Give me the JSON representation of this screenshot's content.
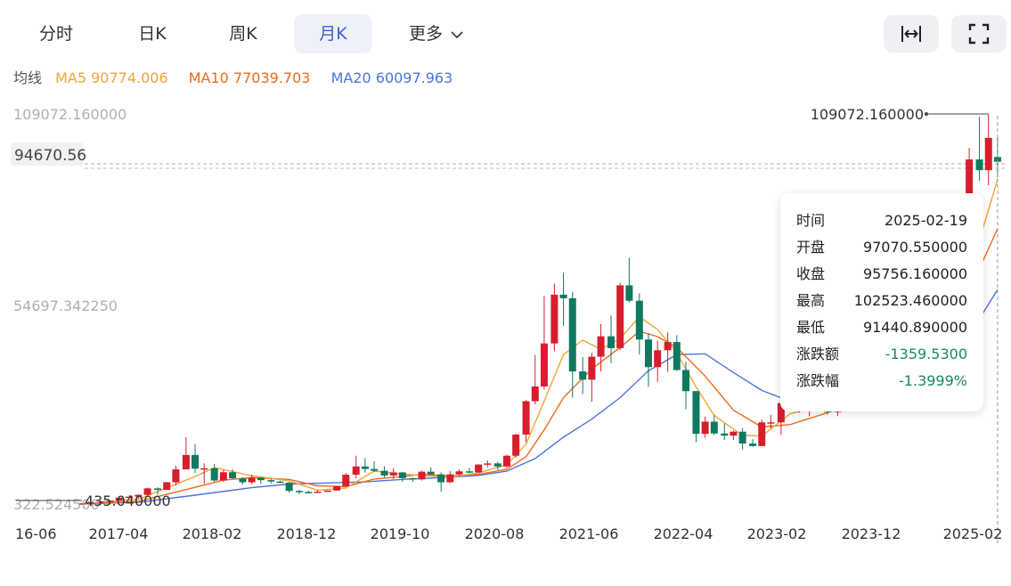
{
  "tabs": [
    {
      "label": "分时",
      "active": false
    },
    {
      "label": "日K",
      "active": false
    },
    {
      "label": "周K",
      "active": false
    },
    {
      "label": "月K",
      "active": true
    },
    {
      "label": "更多",
      "active": false
    }
  ],
  "toolbar": {
    "fit_icon": "fit-width-icon",
    "fullscreen_icon": "fullscreen-icon"
  },
  "ma_legend": {
    "label": "均线",
    "ma5": "MA5 90774.006",
    "ma10": "MA10 77039.703",
    "ma20": "MA20 60097.963"
  },
  "colors": {
    "up": "#d81e2e",
    "down": "#0f7a5f",
    "ma5": "#f3a33a",
    "ma10": "#f06a1c",
    "ma20": "#4d72e0",
    "accent": "#3b63d8",
    "down_text": "#1a8a5c"
  },
  "tooltip": {
    "rows": [
      {
        "key": "时间",
        "value": "2025-02-19",
        "tone": "normal"
      },
      {
        "key": "开盘",
        "value": "97070.550000",
        "tone": "normal"
      },
      {
        "key": "收盘",
        "value": "95756.160000",
        "tone": "normal"
      },
      {
        "key": "最高",
        "value": "102523.460000",
        "tone": "normal"
      },
      {
        "key": "最低",
        "value": "91440.890000",
        "tone": "normal"
      },
      {
        "key": "涨跌额",
        "value": "-1359.5300",
        "tone": "down"
      },
      {
        "key": "涨跌幅",
        "value": "-1.3999%",
        "tone": "down"
      }
    ]
  },
  "chart_data": {
    "type": "candlestick",
    "y_labels": [
      "109072.160000",
      "54697.342250",
      "322.524500"
    ],
    "y_range": [
      322.5245,
      109072.16
    ],
    "price_tag": "94670.56",
    "max_label": "109072.160000",
    "min_label": "435.040000",
    "x_labels": [
      "16-06",
      "2017-04",
      "2018-02",
      "2018-12",
      "2019-10",
      "2020-08",
      "2021-06",
      "2022-04",
      "2023-02",
      "2023-12",
      "2025-02"
    ],
    "candles": [
      {
        "x": 2017.0,
        "o": 450,
        "c": 520,
        "h": 600,
        "l": 435
      },
      {
        "x": 2017.08,
        "o": 520,
        "c": 600,
        "h": 660,
        "l": 480
      },
      {
        "x": 2017.17,
        "o": 600,
        "c": 1000,
        "h": 1100,
        "l": 560
      },
      {
        "x": 2017.25,
        "o": 1000,
        "c": 1300,
        "h": 1400,
        "l": 950
      },
      {
        "x": 2017.33,
        "o": 1300,
        "c": 2100,
        "h": 2300,
        "l": 1250
      },
      {
        "x": 2017.42,
        "o": 2100,
        "c": 2400,
        "h": 2800,
        "l": 2000
      },
      {
        "x": 2017.5,
        "o": 2400,
        "c": 2900,
        "h": 3000,
        "l": 1900
      },
      {
        "x": 2017.58,
        "o": 2900,
        "c": 4700,
        "h": 4900,
        "l": 2800
      },
      {
        "x": 2017.67,
        "o": 4700,
        "c": 4300,
        "h": 5000,
        "l": 3000
      },
      {
        "x": 2017.75,
        "o": 4300,
        "c": 6400,
        "h": 6500,
        "l": 4200
      },
      {
        "x": 2017.83,
        "o": 6400,
        "c": 10000,
        "h": 11000,
        "l": 5500
      },
      {
        "x": 2017.92,
        "o": 10000,
        "c": 14000,
        "h": 19000,
        "l": 10000
      },
      {
        "x": 2018.0,
        "o": 14000,
        "c": 10200,
        "h": 17000,
        "l": 9000
      },
      {
        "x": 2018.08,
        "o": 10200,
        "c": 10300,
        "h": 11700,
        "l": 6000
      },
      {
        "x": 2018.17,
        "o": 10300,
        "c": 6900,
        "h": 11500,
        "l": 6500
      },
      {
        "x": 2018.25,
        "o": 6900,
        "c": 9200,
        "h": 9800,
        "l": 6500
      },
      {
        "x": 2018.33,
        "o": 9200,
        "c": 7500,
        "h": 10000,
        "l": 7400
      },
      {
        "x": 2018.42,
        "o": 7500,
        "c": 6400,
        "h": 7800,
        "l": 5800
      },
      {
        "x": 2018.5,
        "o": 6400,
        "c": 7700,
        "h": 8500,
        "l": 5900
      },
      {
        "x": 2018.58,
        "o": 7700,
        "c": 7000,
        "h": 7800,
        "l": 5900
      },
      {
        "x": 2018.67,
        "o": 7000,
        "c": 6600,
        "h": 7400,
        "l": 6100
      },
      {
        "x": 2018.75,
        "o": 6600,
        "c": 6300,
        "h": 6800,
        "l": 6200
      },
      {
        "x": 2018.83,
        "o": 6300,
        "c": 4000,
        "h": 6500,
        "l": 3500
      },
      {
        "x": 2018.92,
        "o": 4000,
        "c": 3700,
        "h": 4300,
        "l": 3100
      },
      {
        "x": 2019.0,
        "o": 3700,
        "c": 3450,
        "h": 4000,
        "l": 3350
      },
      {
        "x": 2019.08,
        "o": 3450,
        "c": 3800,
        "h": 4200,
        "l": 3400
      },
      {
        "x": 2019.17,
        "o": 3800,
        "c": 4100,
        "h": 4100,
        "l": 3700
      },
      {
        "x": 2019.25,
        "o": 4100,
        "c": 5300,
        "h": 5400,
        "l": 4000
      },
      {
        "x": 2019.33,
        "o": 5300,
        "c": 8500,
        "h": 9000,
        "l": 5200
      },
      {
        "x": 2019.42,
        "o": 8500,
        "c": 10800,
        "h": 13800,
        "l": 7500
      },
      {
        "x": 2019.5,
        "o": 10800,
        "c": 10100,
        "h": 13100,
        "l": 9100
      },
      {
        "x": 2019.58,
        "o": 10100,
        "c": 9600,
        "h": 12300,
        "l": 9300
      },
      {
        "x": 2019.67,
        "o": 9600,
        "c": 8300,
        "h": 10900,
        "l": 7700
      },
      {
        "x": 2019.75,
        "o": 8300,
        "c": 9150,
        "h": 10300,
        "l": 7300
      },
      {
        "x": 2019.83,
        "o": 9150,
        "c": 7550,
        "h": 9300,
        "l": 6500
      },
      {
        "x": 2019.92,
        "o": 7550,
        "c": 7200,
        "h": 7700,
        "l": 6500
      },
      {
        "x": 2020.0,
        "o": 7200,
        "c": 9350,
        "h": 9600,
        "l": 6900
      },
      {
        "x": 2020.08,
        "o": 9350,
        "c": 8600,
        "h": 10500,
        "l": 8400
      },
      {
        "x": 2020.17,
        "o": 8600,
        "c": 6400,
        "h": 9200,
        "l": 3800
      },
      {
        "x": 2020.25,
        "o": 6400,
        "c": 8600,
        "h": 9500,
        "l": 6200
      },
      {
        "x": 2020.33,
        "o": 8600,
        "c": 9450,
        "h": 10000,
        "l": 8100
      },
      {
        "x": 2020.42,
        "o": 9450,
        "c": 9150,
        "h": 10400,
        "l": 8900
      },
      {
        "x": 2020.5,
        "o": 9150,
        "c": 11350,
        "h": 11400,
        "l": 8950
      },
      {
        "x": 2020.58,
        "o": 11350,
        "c": 11650,
        "h": 12500,
        "l": 10600
      },
      {
        "x": 2020.67,
        "o": 11650,
        "c": 10800,
        "h": 12100,
        "l": 9800
      },
      {
        "x": 2020.75,
        "o": 10800,
        "c": 13800,
        "h": 14100,
        "l": 10400
      },
      {
        "x": 2020.83,
        "o": 13800,
        "c": 19700,
        "h": 19900,
        "l": 13200
      },
      {
        "x": 2020.92,
        "o": 19700,
        "c": 29000,
        "h": 29300,
        "l": 17600
      },
      {
        "x": 2021.0,
        "o": 29000,
        "c": 33100,
        "h": 41900,
        "l": 28100
      },
      {
        "x": 2021.08,
        "o": 33100,
        "c": 45100,
        "h": 58300,
        "l": 32300
      },
      {
        "x": 2021.17,
        "o": 45100,
        "c": 58700,
        "h": 61800,
        "l": 43000
      },
      {
        "x": 2021.25,
        "o": 58700,
        "c": 57700,
        "h": 64800,
        "l": 50000
      },
      {
        "x": 2021.33,
        "o": 57700,
        "c": 37300,
        "h": 59500,
        "l": 30000
      },
      {
        "x": 2021.42,
        "o": 37300,
        "c": 35000,
        "h": 41300,
        "l": 31000
      },
      {
        "x": 2021.5,
        "o": 35000,
        "c": 41400,
        "h": 42400,
        "l": 28900
      },
      {
        "x": 2021.58,
        "o": 41400,
        "c": 47100,
        "h": 50500,
        "l": 37300
      },
      {
        "x": 2021.67,
        "o": 47100,
        "c": 43800,
        "h": 52900,
        "l": 39600
      },
      {
        "x": 2021.75,
        "o": 43800,
        "c": 61300,
        "h": 62000,
        "l": 43300
      },
      {
        "x": 2021.83,
        "o": 61300,
        "c": 57000,
        "h": 69000,
        "l": 56500
      },
      {
        "x": 2021.92,
        "o": 57000,
        "c": 46200,
        "h": 59100,
        "l": 42000
      },
      {
        "x": 2022.0,
        "o": 46200,
        "c": 38500,
        "h": 48000,
        "l": 33000
      },
      {
        "x": 2022.08,
        "o": 38500,
        "c": 43200,
        "h": 45800,
        "l": 34300
      },
      {
        "x": 2022.17,
        "o": 43200,
        "c": 45500,
        "h": 48200,
        "l": 37200
      },
      {
        "x": 2022.25,
        "o": 45500,
        "c": 37700,
        "h": 47400,
        "l": 37400
      },
      {
        "x": 2022.33,
        "o": 37700,
        "c": 31800,
        "h": 40000,
        "l": 26700
      },
      {
        "x": 2022.42,
        "o": 31800,
        "c": 19900,
        "h": 31900,
        "l": 17600
      },
      {
        "x": 2022.5,
        "o": 19900,
        "c": 23300,
        "h": 24700,
        "l": 18800
      },
      {
        "x": 2022.58,
        "o": 23300,
        "c": 20000,
        "h": 25200,
        "l": 19600
      },
      {
        "x": 2022.67,
        "o": 20000,
        "c": 19400,
        "h": 22800,
        "l": 18200
      },
      {
        "x": 2022.75,
        "o": 19400,
        "c": 20500,
        "h": 20800,
        "l": 18200
      },
      {
        "x": 2022.83,
        "o": 20500,
        "c": 17200,
        "h": 21500,
        "l": 15500
      },
      {
        "x": 2022.92,
        "o": 17200,
        "c": 16500,
        "h": 18400,
        "l": 16300
      },
      {
        "x": 2023.0,
        "o": 16500,
        "c": 23100,
        "h": 23900,
        "l": 16500
      },
      {
        "x": 2023.08,
        "o": 23100,
        "c": 23100,
        "h": 25200,
        "l": 21400
      },
      {
        "x": 2023.17,
        "o": 23100,
        "c": 28500,
        "h": 29200,
        "l": 19600
      },
      {
        "x": 2023.25,
        "o": 28500,
        "c": 29200,
        "h": 31000,
        "l": 26900
      },
      {
        "x": 2023.33,
        "o": 29200,
        "c": 27200,
        "h": 29800,
        "l": 25800
      },
      {
        "x": 2023.42,
        "o": 27200,
        "c": 30500,
        "h": 31400,
        "l": 24800
      },
      {
        "x": 2023.5,
        "o": 30500,
        "c": 29200,
        "h": 31800,
        "l": 28900
      },
      {
        "x": 2023.58,
        "o": 29200,
        "c": 26000,
        "h": 30100,
        "l": 25300
      },
      {
        "x": 2023.67,
        "o": 26000,
        "c": 27000,
        "h": 28000,
        "l": 24900
      },
      {
        "x": 2023.75,
        "o": 27000,
        "c": 34500,
        "h": 35000,
        "l": 26600
      },
      {
        "x": 2023.83,
        "o": 34500,
        "c": 37700,
        "h": 38400,
        "l": 34100
      },
      {
        "x": 2023.92,
        "o": 37700,
        "c": 42300,
        "h": 44700,
        "l": 37600
      },
      {
        "x": 2024.0,
        "o": 42300,
        "c": 42600,
        "h": 48900,
        "l": 38500
      },
      {
        "x": 2024.08,
        "o": 42600,
        "c": 61200,
        "h": 64000,
        "l": 41900
      },
      {
        "x": 2024.17,
        "o": 61200,
        "c": 71300,
        "h": 73800,
        "l": 59000
      },
      {
        "x": 2024.25,
        "o": 71300,
        "c": 60700,
        "h": 72800,
        "l": 59200
      },
      {
        "x": 2024.33,
        "o": 60700,
        "c": 67500,
        "h": 71900,
        "l": 56600
      },
      {
        "x": 2024.42,
        "o": 67500,
        "c": 62700,
        "h": 71900,
        "l": 58500
      },
      {
        "x": 2024.5,
        "o": 62700,
        "c": 64600,
        "h": 70000,
        "l": 53500
      },
      {
        "x": 2024.58,
        "o": 64600,
        "c": 58900,
        "h": 65600,
        "l": 49000
      },
      {
        "x": 2024.67,
        "o": 58900,
        "c": 63300,
        "h": 66500,
        "l": 52600
      },
      {
        "x": 2024.75,
        "o": 63300,
        "c": 70200,
        "h": 73600,
        "l": 58900
      },
      {
        "x": 2024.83,
        "o": 70200,
        "c": 96400,
        "h": 99600,
        "l": 66800
      },
      {
        "x": 2024.92,
        "o": 96400,
        "c": 93400,
        "h": 108300,
        "l": 90500
      },
      {
        "x": 2025.0,
        "o": 93400,
        "c": 102400,
        "h": 109072,
        "l": 89200
      },
      {
        "x": 2025.08,
        "o": 97070.55,
        "c": 95756.16,
        "h": 102523.46,
        "l": 91440.89
      }
    ],
    "ma5": [
      [
        2017.0,
        420
      ],
      [
        2017.5,
        1700
      ],
      [
        2018.0,
        8000
      ],
      [
        2018.17,
        10500
      ],
      [
        2018.5,
        8200
      ],
      [
        2018.83,
        6800
      ],
      [
        2019.08,
        4200
      ],
      [
        2019.33,
        4800
      ],
      [
        2019.58,
        9500
      ],
      [
        2019.83,
        8700
      ],
      [
        2020.0,
        8300
      ],
      [
        2020.25,
        7800
      ],
      [
        2020.5,
        9000
      ],
      [
        2020.75,
        11300
      ],
      [
        2020.92,
        17000
      ],
      [
        2021.08,
        29000
      ],
      [
        2021.25,
        42000
      ],
      [
        2021.42,
        46000
      ],
      [
        2021.58,
        43500
      ],
      [
        2021.75,
        46500
      ],
      [
        2021.92,
        52500
      ],
      [
        2022.08,
        49000
      ],
      [
        2022.25,
        42500
      ],
      [
        2022.42,
        33000
      ],
      [
        2022.58,
        25000
      ],
      [
        2022.83,
        19500
      ],
      [
        2023.0,
        19300
      ],
      [
        2023.25,
        25500
      ],
      [
        2023.58,
        28200
      ],
      [
        2023.83,
        32000
      ],
      [
        2024.0,
        40000
      ],
      [
        2024.25,
        55000
      ],
      [
        2024.5,
        63000
      ],
      [
        2024.75,
        63500
      ],
      [
        2024.92,
        74000
      ],
      [
        2025.08,
        90774
      ]
    ],
    "ma10": [
      [
        2017.0,
        400
      ],
      [
        2017.5,
        1100
      ],
      [
        2018.0,
        5000
      ],
      [
        2018.25,
        7000
      ],
      [
        2018.5,
        7700
      ],
      [
        2018.83,
        7200
      ],
      [
        2019.08,
        5400
      ],
      [
        2019.33,
        5200
      ],
      [
        2019.58,
        7300
      ],
      [
        2019.83,
        8000
      ],
      [
        2020.0,
        8600
      ],
      [
        2020.25,
        8200
      ],
      [
        2020.5,
        8600
      ],
      [
        2020.75,
        10000
      ],
      [
        2020.92,
        13500
      ],
      [
        2021.08,
        21000
      ],
      [
        2021.25,
        30000
      ],
      [
        2021.5,
        38000
      ],
      [
        2021.75,
        44000
      ],
      [
        2021.92,
        48500
      ],
      [
        2022.08,
        47000
      ],
      [
        2022.25,
        44000
      ],
      [
        2022.5,
        36000
      ],
      [
        2022.75,
        26500
      ],
      [
        2023.0,
        21800
      ],
      [
        2023.25,
        22500
      ],
      [
        2023.58,
        25800
      ],
      [
        2023.83,
        28800
      ],
      [
        2024.0,
        32500
      ],
      [
        2024.25,
        43000
      ],
      [
        2024.5,
        52000
      ],
      [
        2024.75,
        60000
      ],
      [
        2024.92,
        66000
      ],
      [
        2025.08,
        77040
      ]
    ],
    "ma20": [
      [
        2017.0,
        380
      ],
      [
        2017.5,
        800
      ],
      [
        2018.0,
        2800
      ],
      [
        2018.5,
        4900
      ],
      [
        2018.83,
        5900
      ],
      [
        2019.17,
        6200
      ],
      [
        2019.5,
        6500
      ],
      [
        2019.83,
        7200
      ],
      [
        2020.17,
        7700
      ],
      [
        2020.5,
        8300
      ],
      [
        2020.75,
        9500
      ],
      [
        2021.0,
        13000
      ],
      [
        2021.25,
        19000
      ],
      [
        2021.5,
        24000
      ],
      [
        2021.75,
        30000
      ],
      [
        2022.0,
        37500
      ],
      [
        2022.25,
        42000
      ],
      [
        2022.5,
        42200
      ],
      [
        2022.75,
        37000
      ],
      [
        2023.0,
        32000
      ],
      [
        2023.25,
        29000
      ],
      [
        2023.5,
        27500
      ],
      [
        2023.83,
        28000
      ],
      [
        2024.0,
        29500
      ],
      [
        2024.25,
        34000
      ],
      [
        2024.5,
        39500
      ],
      [
        2024.75,
        46000
      ],
      [
        2024.92,
        52000
      ],
      [
        2025.08,
        60098
      ]
    ],
    "x_range": [
      2016.42,
      2025.12
    ],
    "grid": false
  }
}
